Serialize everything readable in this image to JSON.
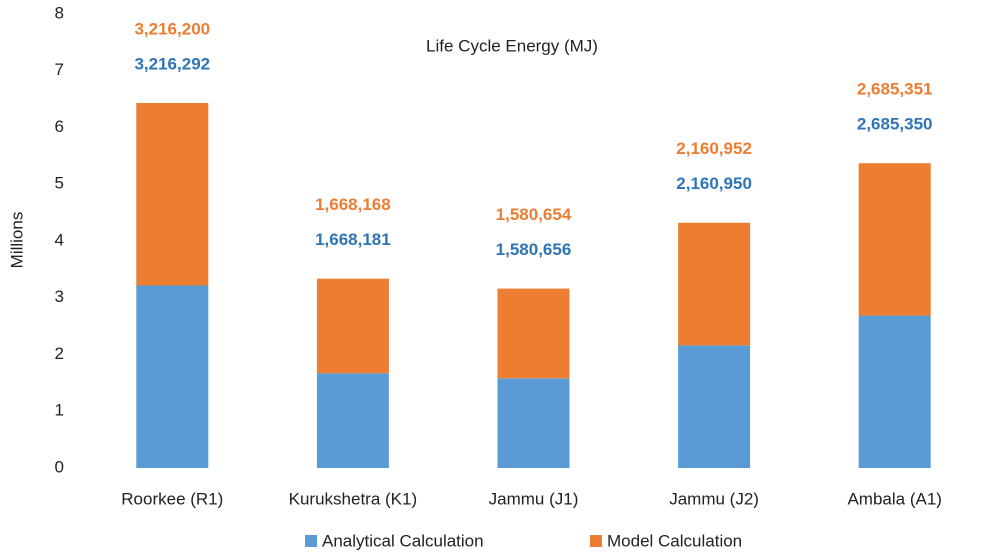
{
  "chart_data": {
    "type": "stacked_bar",
    "title": "Life Cycle Energy (MJ)",
    "y_label": "Millions",
    "categories": [
      "Roorkee (R1)",
      "Kurukshetra (K1)",
      "Jammu (J1)",
      "Jammu (J2)",
      "Ambala (A1)"
    ],
    "series": [
      {
        "name": "Analytical Calculation",
        "color": "#5b9bd5",
        "label_color": "#2e75b6",
        "values": [
          3.216292,
          1.668181,
          1.580656,
          2.16095,
          2.68535
        ],
        "value_labels": [
          "3,216,292",
          "1,668,181",
          "1,580,656",
          "2,160,950",
          "2,685,350"
        ]
      },
      {
        "name": "Model Calculation",
        "color": "#ed7d31",
        "label_color": "#ed7d31",
        "values": [
          3.2162,
          1.668168,
          1.580654,
          2.160952,
          2.685351
        ],
        "value_labels": [
          "3,216,200",
          "1,668,168",
          "1,580,654",
          "2,160,952",
          "2,685,351"
        ]
      }
    ],
    "ylim": [
      0,
      8
    ],
    "yticks": [
      0,
      1,
      2,
      3,
      4,
      5,
      6,
      7,
      8
    ],
    "grid": false,
    "legend": "bottom"
  }
}
